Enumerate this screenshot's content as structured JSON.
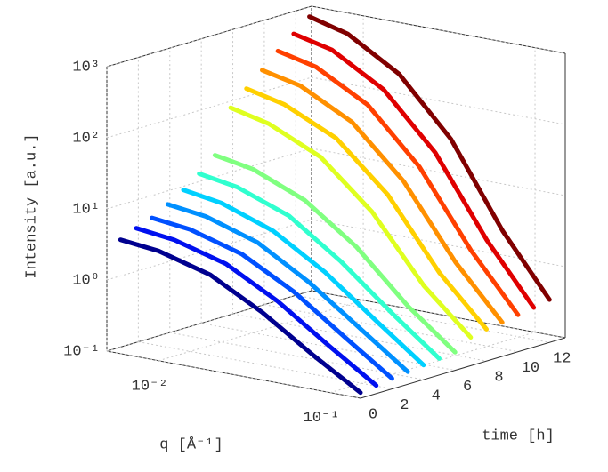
{
  "chart_data": {
    "type": "line3d",
    "xlabel": "q [Å⁻¹]",
    "ylabel": "time [h]",
    "zlabel": "Intensity [a.u.]",
    "xscale": "log",
    "zscale": "log",
    "grid": true,
    "x": [
      0.006,
      0.01,
      0.02,
      0.04,
      0.08,
      0.15
    ],
    "xlim": [
      0.005,
      0.15
    ],
    "xticks": [
      {
        "value": 0.01,
        "label": "10⁻²"
      },
      {
        "value": 0.1,
        "label": "10⁻¹"
      }
    ],
    "ylim": [
      0,
      13
    ],
    "yticks": [
      0,
      2,
      4,
      6,
      8,
      10,
      12
    ],
    "zlim": [
      0.1,
      1000
    ],
    "zticks": [
      {
        "value": 0.1,
        "label": "10⁻¹"
      },
      {
        "value": 1,
        "label": "10⁰"
      },
      {
        "value": 10,
        "label": "10¹"
      },
      {
        "value": 100,
        "label": "10²"
      },
      {
        "value": 1000,
        "label": "10³"
      }
    ],
    "series": [
      {
        "y": 0,
        "color": "#00008f",
        "values": [
          4,
          3.5,
          2.2,
          0.9,
          0.3,
          0.12
        ]
      },
      {
        "y": 1,
        "color": "#0010ef",
        "values": [
          5,
          4.3,
          2.7,
          1.1,
          0.35,
          0.13
        ]
      },
      {
        "y": 2,
        "color": "#0050ff",
        "values": [
          6,
          5.2,
          3.2,
          1.3,
          0.4,
          0.14
        ]
      },
      {
        "y": 3,
        "color": "#0090ff",
        "values": [
          8,
          6.8,
          4,
          1.5,
          0.45,
          0.15
        ]
      },
      {
        "y": 4,
        "color": "#00d0ff",
        "values": [
          11,
          9,
          5,
          1.8,
          0.5,
          0.16
        ]
      },
      {
        "y": 5,
        "color": "#30ffcf",
        "values": [
          16,
          13,
          7,
          2.2,
          0.55,
          0.17
        ]
      },
      {
        "y": 6,
        "color": "#80ff80",
        "values": [
          25,
          20,
          10,
          3,
          0.6,
          0.18
        ]
      },
      {
        "y": 7,
        "color": "#dfff20",
        "values": [
          100,
          75,
          35,
          8,
          1,
          0.25
        ]
      },
      {
        "y": 8,
        "color": "#ffd000",
        "values": [
          160,
          120,
          55,
          12,
          1.3,
          0.28
        ]
      },
      {
        "y": 9,
        "color": "#ff9000",
        "values": [
          250,
          190,
          80,
          16,
          1.6,
          0.3
        ]
      },
      {
        "y": 10,
        "color": "#ff4000",
        "values": [
          400,
          300,
          120,
          22,
          2,
          0.33
        ]
      },
      {
        "y": 11,
        "color": "#df0000",
        "values": [
          600,
          450,
          170,
          30,
          2.4,
          0.36
        ]
      },
      {
        "y": 12,
        "color": "#800000",
        "values": [
          900,
          650,
          240,
          40,
          2.8,
          0.4
        ]
      }
    ]
  }
}
